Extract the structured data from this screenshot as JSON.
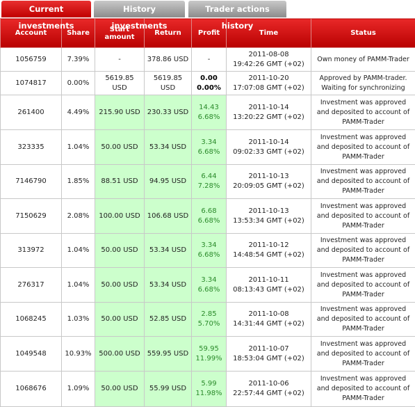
{
  "tabs": [
    "Current investments",
    "History investments",
    "Trader actions history"
  ],
  "table": {
    "headers": [
      "Account",
      "Share",
      "Start amount",
      "Return",
      "Profit",
      "Time",
      "Status"
    ],
    "rows": [
      {
        "account": "1056759",
        "share": "7.39%",
        "start": "-",
        "return": "378.86 USD",
        "profit": [
          "-"
        ],
        "time": [
          "2011-08-08",
          "19:42:26 GMT (+02)"
        ],
        "status": "Own money of PAMM-Trader"
      },
      {
        "account": "1074817",
        "share": "0.00%",
        "start": "5619.85 USD",
        "return": "5619.85 USD",
        "profit": [
          "0.00",
          "0.00%"
        ],
        "time": [
          "2011-10-20",
          "17:07:08 GMT (+02)"
        ],
        "status": "Approved by PAMM-trader. Waiting for synchronizing"
      },
      {
        "account": "261400",
        "share": "4.49%",
        "start": "215.90 USD",
        "return": "230.33 USD",
        "profit": [
          "14.43",
          "6.68%"
        ],
        "time": [
          "2011-10-14",
          "13:20:22 GMT (+02)"
        ],
        "status": "Investment was approved and deposited to account of PAMM-Trader"
      },
      {
        "account": "323335",
        "share": "1.04%",
        "start": "50.00 USD",
        "return": "53.34 USD",
        "profit": [
          "3.34",
          "6.68%"
        ],
        "time": [
          "2011-10-14",
          "09:02:33 GMT (+02)"
        ],
        "status": "Investment was approved and deposited to account of PAMM-Trader"
      },
      {
        "account": "7146790",
        "share": "1.85%",
        "start": "88.51 USD",
        "return": "94.95 USD",
        "profit": [
          "6.44",
          "7.28%"
        ],
        "time": [
          "2011-10-13",
          "20:09:05 GMT (+02)"
        ],
        "status": "Investment was approved and deposited to account of PAMM-Trader"
      },
      {
        "account": "7150629",
        "share": "2.08%",
        "start": "100.00 USD",
        "return": "106.68 USD",
        "profit": [
          "6.68",
          "6.68%"
        ],
        "time": [
          "2011-10-13",
          "13:53:34 GMT (+02)"
        ],
        "status": "Investment was approved and deposited to account of PAMM-Trader"
      },
      {
        "account": "313972",
        "share": "1.04%",
        "start": "50.00 USD",
        "return": "53.34 USD",
        "profit": [
          "3.34",
          "6.68%"
        ],
        "time": [
          "2011-10-12",
          "14:48:54 GMT (+02)"
        ],
        "status": "Investment was approved and deposited to account of PAMM-Trader"
      },
      {
        "account": "276317",
        "share": "1.04%",
        "start": "50.00 USD",
        "return": "53.34 USD",
        "profit": [
          "3.34",
          "6.68%"
        ],
        "time": [
          "2011-10-11",
          "08:13:43 GMT (+02)"
        ],
        "status": "Investment was approved and deposited to account of PAMM-Trader"
      },
      {
        "account": "1068245",
        "share": "1.03%",
        "start": "50.00 USD",
        "return": "52.85 USD",
        "profit": [
          "2.85",
          "5.70%"
        ],
        "time": [
          "2011-10-08",
          "14:31:44 GMT (+02)"
        ],
        "status": "Investment was approved and deposited to account of PAMM-Trader"
      },
      {
        "account": "1049548",
        "share": "10.93%",
        "start": "500.00 USD",
        "return": "559.95 USD",
        "profit": [
          "59.95",
          "11.99%"
        ],
        "time": [
          "2011-10-07",
          "18:53:04 GMT (+02)"
        ],
        "status": "Investment was approved and deposited to account of PAMM-Trader"
      },
      {
        "account": "1068676",
        "share": "1.09%",
        "start": "50.00 USD",
        "return": "55.99 USD",
        "profit": [
          "5.99",
          "11.98%"
        ],
        "time": [
          "2011-10-06",
          "22:57:44 GMT (+02)"
        ],
        "status": "Investment was approved and deposited to account of PAMM-Trader"
      }
    ]
  }
}
